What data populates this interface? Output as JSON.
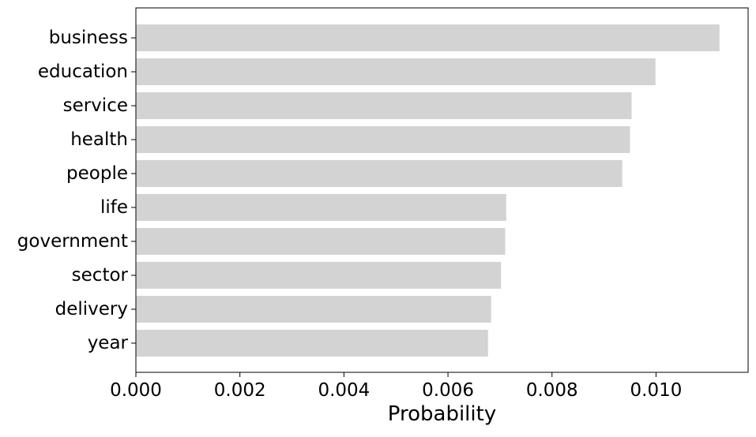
{
  "chart_data": {
    "type": "bar",
    "orientation": "horizontal",
    "categories": [
      "business",
      "education",
      "service",
      "health",
      "people",
      "life",
      "government",
      "sector",
      "delivery",
      "year"
    ],
    "values": [
      0.01122,
      0.00999,
      0.00953,
      0.0095,
      0.00935,
      0.00712,
      0.0071,
      0.00702,
      0.00683,
      0.00677
    ],
    "bar_color": "#d3d3d3",
    "xlabel": "Probability",
    "ylabel": "",
    "xlim": [
      0,
      0.01177
    ],
    "xticks": [
      0,
      0.002,
      0.004,
      0.006,
      0.008,
      0.01
    ],
    "xtick_labels": [
      "0.000",
      "0.002",
      "0.004",
      "0.006",
      "0.008",
      "0.010"
    ],
    "grid": false,
    "legend": "none"
  }
}
